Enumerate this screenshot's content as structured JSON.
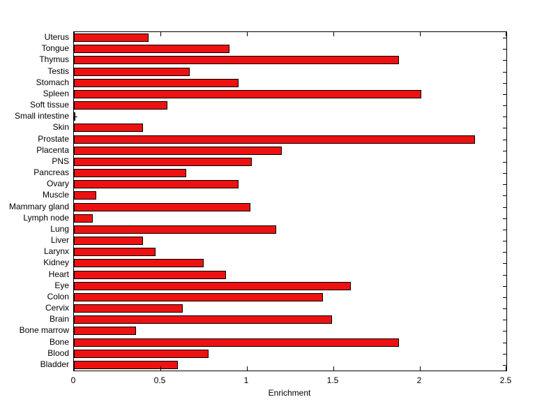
{
  "chart_data": {
    "type": "bar",
    "orientation": "horizontal",
    "xlabel": "Enrichment",
    "xlim": [
      0,
      2.5
    ],
    "xticks": [
      0,
      0.5,
      1,
      1.5,
      2,
      2.5
    ],
    "xtick_labels": [
      "0",
      "0.5",
      "1",
      "1.5",
      "2",
      "2.5"
    ],
    "bar_color": "#ee1111",
    "bar_edge_color": "#000000",
    "categories": [
      "Uterus",
      "Tongue",
      "Thymus",
      "Testis",
      "Stomach",
      "Spleen",
      "Soft tissue",
      "Small intestine",
      "Skin",
      "Prostate",
      "Placenta",
      "PNS",
      "Pancreas",
      "Ovary",
      "Muscle",
      "Mammary gland",
      "Lymph node",
      "Lung",
      "Liver",
      "Larynx",
      "Kidney",
      "Heart",
      "Eye",
      "Colon",
      "Cervix",
      "Brain",
      "Bone marrow",
      "Bone",
      "Blood",
      "Bladder"
    ],
    "values": [
      0.43,
      0.9,
      1.88,
      0.67,
      0.95,
      2.01,
      0.54,
      0.01,
      0.4,
      2.32,
      1.2,
      1.03,
      0.65,
      0.95,
      0.13,
      1.02,
      0.11,
      1.17,
      0.4,
      0.47,
      0.75,
      0.88,
      1.6,
      1.44,
      0.63,
      1.49,
      0.36,
      1.88,
      0.78,
      0.6
    ]
  }
}
